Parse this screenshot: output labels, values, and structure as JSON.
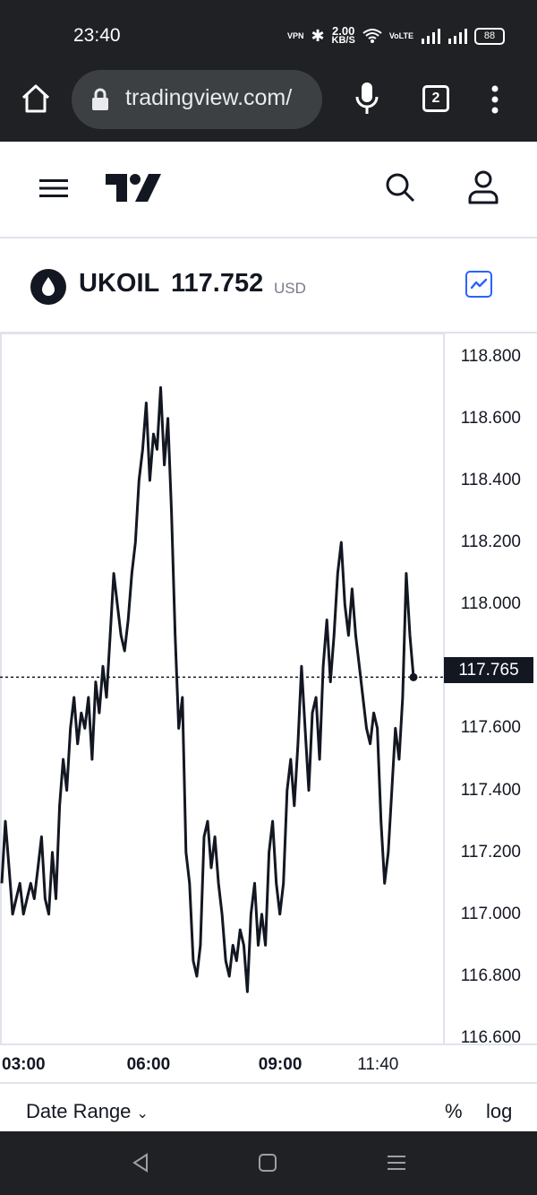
{
  "status_bar": {
    "time": "23:40",
    "vpn_label": "VPN",
    "speed_value": "2.00",
    "speed_unit": "KB/S",
    "network_label": "VoLTE",
    "battery": "88"
  },
  "browser": {
    "url": "tradingview.com/",
    "tab_count": "2"
  },
  "symbol": {
    "name": "UKOIL",
    "price": "117.752",
    "currency": "USD"
  },
  "chart_data": {
    "type": "line",
    "title": "",
    "x_ticks": [
      "03:00",
      "06:00",
      "09:00",
      "11:40"
    ],
    "y_ticks": [
      "118.800",
      "118.600",
      "118.400",
      "118.200",
      "118.000",
      "117.600",
      "117.400",
      "117.200",
      "117.000",
      "116.800",
      "116.600"
    ],
    "ylim": [
      116.58,
      118.88
    ],
    "last_price_label": "117.765",
    "last_price": 117.765,
    "series": [
      {
        "values": [
          117.1,
          117.3,
          117.15,
          117.0,
          117.05,
          117.1,
          117.0,
          117.05,
          117.1,
          117.05,
          117.15,
          117.25,
          117.05,
          117.0,
          117.2,
          117.05,
          117.35,
          117.5,
          117.4,
          117.6,
          117.7,
          117.55,
          117.65,
          117.6,
          117.7,
          117.5,
          117.75,
          117.65,
          117.8,
          117.7,
          117.9,
          118.1,
          118.0,
          117.9,
          117.85,
          117.95,
          118.1,
          118.2,
          118.4,
          118.5,
          118.65,
          118.4,
          118.55,
          118.5,
          118.7,
          118.45,
          118.6,
          118.3,
          117.9,
          117.6,
          117.7,
          117.2,
          117.1,
          116.85,
          116.8,
          116.9,
          117.25,
          117.3,
          117.15,
          117.25,
          117.1,
          117.0,
          116.85,
          116.8,
          116.9,
          116.85,
          116.95,
          116.9,
          116.75,
          117.0,
          117.1,
          116.9,
          117.0,
          116.9,
          117.2,
          117.3,
          117.1,
          117.0,
          117.1,
          117.4,
          117.5,
          117.35,
          117.55,
          117.8,
          117.6,
          117.4,
          117.65,
          117.7,
          117.5,
          117.8,
          117.95,
          117.75,
          117.9,
          118.1,
          118.2,
          118.0,
          117.9,
          118.05,
          117.9,
          117.8,
          117.7,
          117.6,
          117.55,
          117.65,
          117.6,
          117.3,
          117.1,
          117.2,
          117.4,
          117.6,
          117.5,
          117.7,
          118.1,
          117.9,
          117.765
        ]
      }
    ]
  },
  "bottom_bar": {
    "date_range_label": "Date Range",
    "percent_label": "%",
    "log_label": "log"
  }
}
